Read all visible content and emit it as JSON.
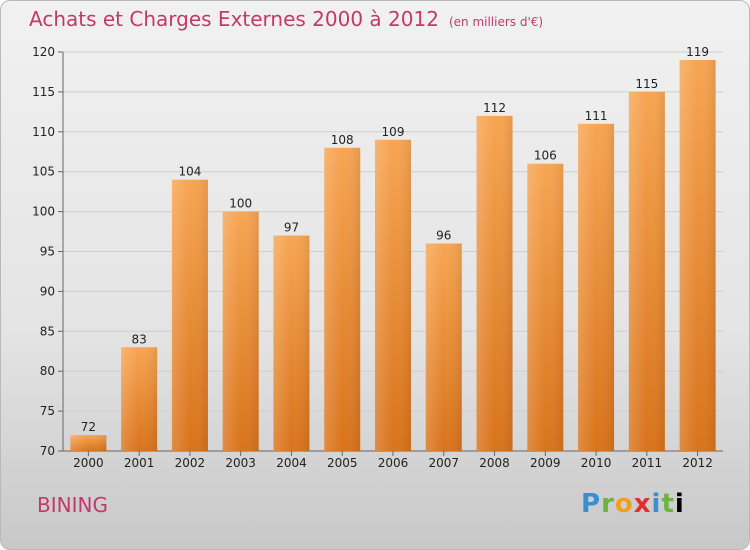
{
  "title": "Achats et Charges Externes 2000 à 2012",
  "unit": "(en milliers d'€)",
  "city": "BINING",
  "logo_letters": [
    "P",
    "r",
    "o",
    "x",
    "i",
    "t",
    "i"
  ],
  "colors": {
    "bar_top": "#f7a552",
    "bar_bottom": "#d9731b",
    "title": "#c23a6a"
  },
  "chart_data": {
    "type": "bar",
    "title": "Achats et Charges Externes 2000 à 2012",
    "xlabel": "",
    "ylabel": "",
    "categories": [
      "2000",
      "2001",
      "2002",
      "2003",
      "2004",
      "2005",
      "2006",
      "2007",
      "2008",
      "2009",
      "2010",
      "2011",
      "2012"
    ],
    "values": [
      72,
      83,
      104,
      100,
      97,
      108,
      109,
      96,
      112,
      106,
      111,
      115,
      119
    ],
    "ylim": [
      70,
      120
    ],
    "yticks": [
      70,
      75,
      80,
      85,
      90,
      95,
      100,
      105,
      110,
      115,
      120
    ],
    "grid": true
  }
}
